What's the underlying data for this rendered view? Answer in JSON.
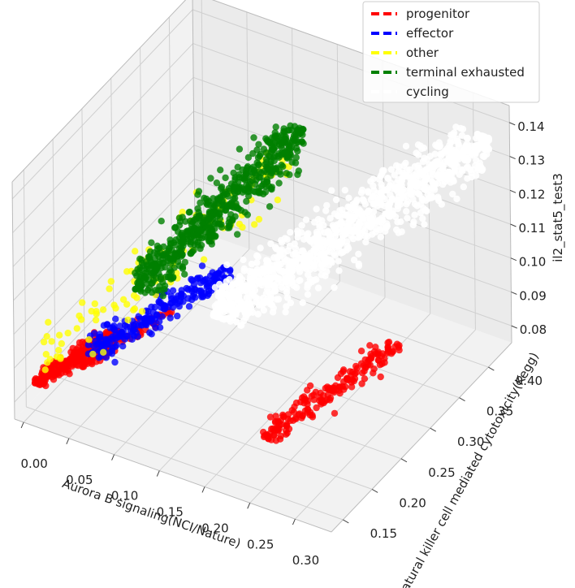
{
  "chart_data": {
    "type": "scatter",
    "projection": "3d",
    "xlabel": "Aurora B signaling(NCI/Nature)",
    "ylabel": "Natural killer cell mediated cytotoxicity(Kegg)",
    "zlabel": "il2_stat5_test3",
    "xlim": [
      -0.01,
      0.34
    ],
    "ylim": [
      0.13,
      0.44
    ],
    "zlim": [
      0.075,
      0.145
    ],
    "x_ticks": [
      "0.00",
      "0.05",
      "0.10",
      "0.15",
      "0.20",
      "0.25",
      "0.30"
    ],
    "y_ticks": [
      "0.15",
      "0.20",
      "0.25",
      "0.30",
      "0.35",
      "0.40"
    ],
    "z_ticks": [
      "0.08",
      "0.09",
      "0.10",
      "0.11",
      "0.12",
      "0.13",
      "0.14"
    ],
    "grid": true,
    "legend_position": "top-right",
    "series": [
      {
        "name": "progenitor",
        "color": "#ff0000",
        "clusters": [
          {
            "x": [
              0.0,
              0.06
            ],
            "y": [
              0.15,
              0.2
            ],
            "z": [
              0.083,
              0.095
            ],
            "n": 220
          },
          {
            "x": [
              0.04,
              0.1
            ],
            "y": [
              0.17,
              0.23
            ],
            "z": [
              0.088,
              0.1
            ],
            "n": 60
          },
          {
            "x": [
              0.22,
              0.3
            ],
            "y": [
              0.2,
              0.31
            ],
            "z": [
              0.079,
              0.094
            ],
            "n": 190
          }
        ]
      },
      {
        "name": "effector",
        "color": "#0000ff",
        "clusters": [
          {
            "x": [
              0.04,
              0.14
            ],
            "y": [
              0.18,
              0.27
            ],
            "z": [
              0.09,
              0.108
            ],
            "n": 230
          }
        ]
      },
      {
        "name": "other",
        "color": "#ffff00",
        "clusters": [
          {
            "x": [
              0.0,
              0.16
            ],
            "y": [
              0.15,
              0.34
            ],
            "z": [
              0.088,
              0.13
            ],
            "n": 110
          }
        ]
      },
      {
        "name": "terminal exhausted",
        "color": "#008000",
        "clusters": [
          {
            "x": [
              0.06,
              0.17
            ],
            "y": [
              0.23,
              0.35
            ],
            "z": [
              0.102,
              0.138
            ],
            "n": 600
          }
        ]
      },
      {
        "name": "cycling",
        "color": "#ffffff",
        "clusters": [
          {
            "x": [
              0.14,
              0.33
            ],
            "y": [
              0.24,
              0.42
            ],
            "z": [
              0.1,
              0.138
            ],
            "n": 1000
          }
        ]
      }
    ]
  }
}
